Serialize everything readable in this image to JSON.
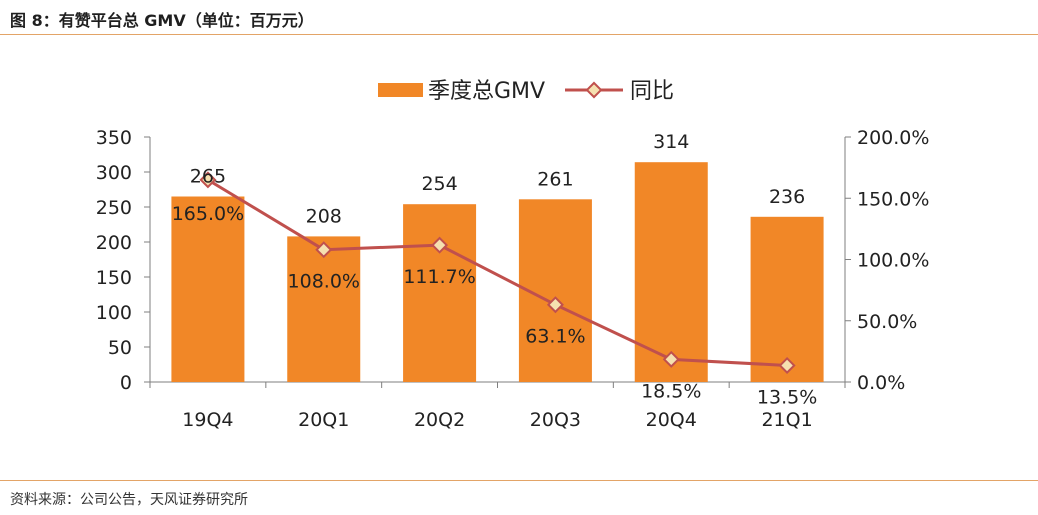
{
  "header": {
    "title": "图 8：有赞平台总 GMV（单位：百万元）"
  },
  "footer": {
    "source": "资料来源：公司公告，天风证券研究所"
  },
  "colors": {
    "bar": "#f18727",
    "line": "#c0504d",
    "marker_fill": "#f5e0b0",
    "rule": "#e3a467"
  },
  "chart_data": {
    "type": "bar",
    "categories": [
      "19Q4",
      "20Q1",
      "20Q2",
      "20Q3",
      "20Q4",
      "21Q1"
    ],
    "series": [
      {
        "name": "季度总GMV",
        "type": "bar",
        "axis": "left",
        "values": [
          265,
          208,
          254,
          261,
          314,
          236
        ],
        "labels": [
          "265",
          "208",
          "254",
          "261",
          "314",
          "236"
        ]
      },
      {
        "name": "同比",
        "type": "line",
        "axis": "right",
        "values": [
          165.0,
          108.0,
          111.7,
          63.1,
          18.5,
          13.5
        ],
        "labels": [
          "165.0%",
          "108.0%",
          "111.7%",
          "63.1%",
          "18.5%",
          "13.5%"
        ]
      }
    ],
    "y_left": {
      "range": [
        0,
        350
      ],
      "ticks": [
        "0",
        "50",
        "100",
        "150",
        "200",
        "250",
        "300",
        "350"
      ]
    },
    "y_right": {
      "range": [
        0,
        200
      ],
      "ticks": [
        "0.0%",
        "50.0%",
        "100.0%",
        "150.0%",
        "200.0%"
      ]
    },
    "legend": {
      "position": "top"
    },
    "grid": false
  }
}
